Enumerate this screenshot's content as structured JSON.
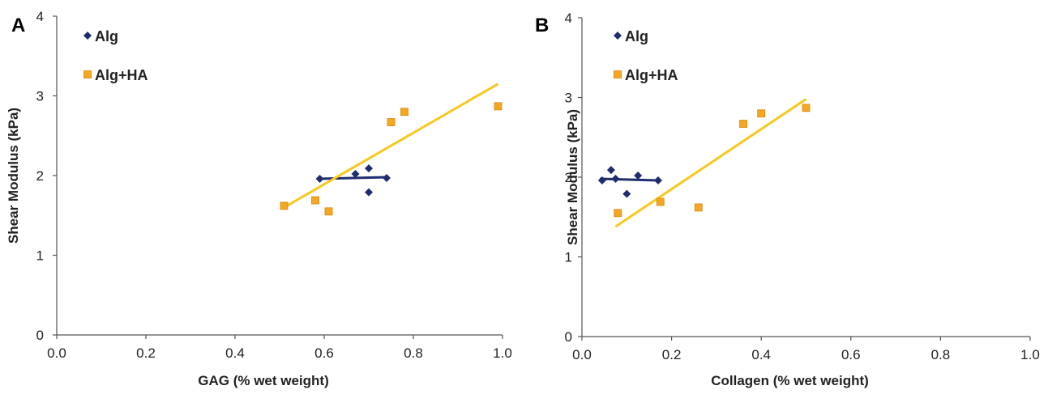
{
  "chart_data": [
    {
      "type": "scatter",
      "panel_label": "A",
      "xlabel": "GAG (% wet weight)",
      "ylabel": "Shear Modulus (kPa)",
      "xlim": [
        0,
        1
      ],
      "ylim": [
        0,
        4
      ],
      "xticks": [
        "0.0",
        "0.2",
        "0.4",
        "0.6",
        "0.8",
        "1.0"
      ],
      "yticks": [
        "0",
        "1",
        "2",
        "3",
        "4"
      ],
      "legend_position": "top-left",
      "series": [
        {
          "name": "Alg",
          "color": "#1f2d6e",
          "marker": "diamond",
          "points": [
            [
              0.59,
              1.96
            ],
            [
              0.67,
              2.02
            ],
            [
              0.7,
              2.09
            ],
            [
              0.7,
              1.79
            ],
            [
              0.74,
              1.97
            ]
          ],
          "trendline": [
            [
              0.59,
              1.96
            ],
            [
              0.74,
              1.98
            ]
          ]
        },
        {
          "name": "Alg+HA",
          "color": "#f5a623",
          "marker": "square",
          "line_color": "#f7c81e",
          "points": [
            [
              0.51,
              1.62
            ],
            [
              0.58,
              1.69
            ],
            [
              0.61,
              1.55
            ],
            [
              0.75,
              2.67
            ],
            [
              0.78,
              2.8
            ],
            [
              0.99,
              2.87
            ]
          ],
          "trendline": [
            [
              0.51,
              1.6
            ],
            [
              0.99,
              3.15
            ]
          ]
        }
      ]
    },
    {
      "type": "scatter",
      "panel_label": "B",
      "xlabel": "Collagen (% wet weight)",
      "ylabel": "Shear Modulus (kPa)",
      "xlim": [
        0,
        1
      ],
      "ylim": [
        0,
        4
      ],
      "xticks": [
        "0.0",
        "0.2",
        "0.4",
        "0.6",
        "0.8",
        "1.0"
      ],
      "yticks": [
        "0",
        "1",
        "2",
        "3",
        "4"
      ],
      "legend_position": "top-left",
      "series": [
        {
          "name": "Alg",
          "color": "#1f2d6e",
          "marker": "diamond",
          "points": [
            [
              0.045,
              1.96
            ],
            [
              0.065,
              2.09
            ],
            [
              0.075,
              1.98
            ],
            [
              0.1,
              1.79
            ],
            [
              0.125,
              2.02
            ],
            [
              0.17,
              1.96
            ]
          ],
          "trendline": [
            [
              0.04,
              1.98
            ],
            [
              0.17,
              1.96
            ]
          ]
        },
        {
          "name": "Alg+HA",
          "color": "#f5a623",
          "marker": "square",
          "line_color": "#f7c81e",
          "points": [
            [
              0.08,
              1.55
            ],
            [
              0.175,
              1.69
            ],
            [
              0.26,
              1.62
            ],
            [
              0.36,
              2.67
            ],
            [
              0.4,
              2.8
            ],
            [
              0.5,
              2.87
            ]
          ],
          "trendline": [
            [
              0.075,
              1.38
            ],
            [
              0.5,
              2.98
            ]
          ]
        }
      ]
    }
  ]
}
